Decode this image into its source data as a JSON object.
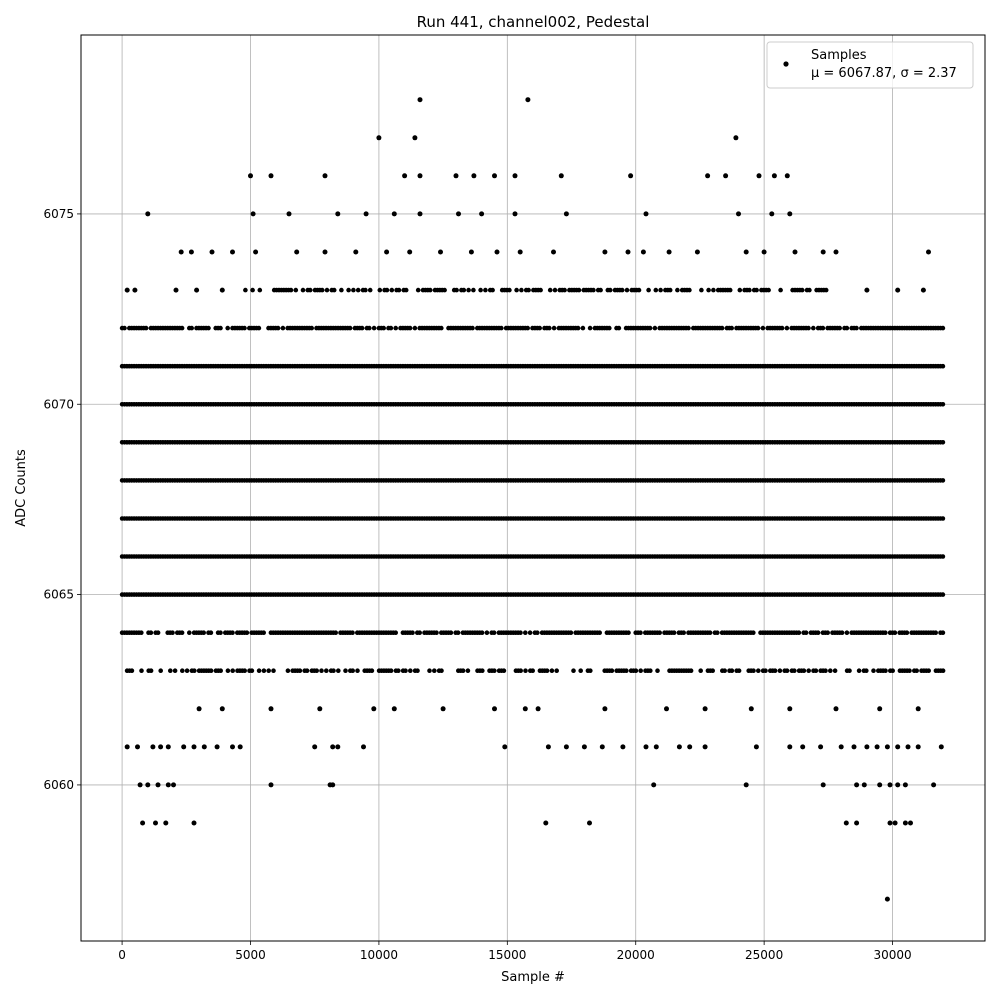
{
  "chart_data": {
    "type": "scatter",
    "title": "Run 441, channel002, Pedestal",
    "xlabel": "Sample #",
    "ylabel": "ADC Counts",
    "xlim": [
      -1600,
      33600
    ],
    "ylim": [
      6055.9,
      6079.7
    ],
    "xticks": [
      0,
      5000,
      10000,
      15000,
      20000,
      25000,
      30000
    ],
    "yticks": [
      6060,
      6065,
      6070,
      6075
    ],
    "grid": true,
    "legend_position": "top-right",
    "marker_color": "#000000",
    "series": [
      {
        "name": "Samples",
        "stats_label": "μ = 6067.87, σ = 2.37",
        "n_samples": 32000,
        "dense_levels": [
          {
            "y": 6064,
            "range": [
              0,
              32000
            ]
          },
          {
            "y": 6065,
            "range": [
              0,
              32000
            ]
          },
          {
            "y": 6066,
            "range": [
              0,
              32000
            ]
          },
          {
            "y": 6067,
            "range": [
              0,
              32000
            ]
          },
          {
            "y": 6068,
            "range": [
              0,
              32000
            ]
          },
          {
            "y": 6069,
            "range": [
              0,
              32000
            ]
          },
          {
            "y": 6070,
            "range": [
              0,
              32000
            ]
          },
          {
            "y": 6071,
            "range": [
              0,
              32000
            ]
          },
          {
            "y": 6072,
            "range": [
              0,
              32000
            ]
          },
          {
            "y": 6063,
            "range": [
              100,
              32000
            ]
          },
          {
            "y": 6073,
            "range": [
              4800,
              27800
            ]
          }
        ],
        "sparse_points": [
          {
            "x": 1000,
            "y": 6075
          },
          {
            "x": 5100,
            "y": 6075
          },
          {
            "x": 6500,
            "y": 6075
          },
          {
            "x": 8400,
            "y": 6075
          },
          {
            "x": 9500,
            "y": 6075
          },
          {
            "x": 10600,
            "y": 6075
          },
          {
            "x": 11600,
            "y": 6075
          },
          {
            "x": 13100,
            "y": 6075
          },
          {
            "x": 14000,
            "y": 6075
          },
          {
            "x": 15300,
            "y": 6075
          },
          {
            "x": 17300,
            "y": 6075
          },
          {
            "x": 20400,
            "y": 6075
          },
          {
            "x": 24000,
            "y": 6075
          },
          {
            "x": 25300,
            "y": 6075
          },
          {
            "x": 26000,
            "y": 6075
          },
          {
            "x": 5000,
            "y": 6076
          },
          {
            "x": 5800,
            "y": 6076
          },
          {
            "x": 7900,
            "y": 6076
          },
          {
            "x": 11000,
            "y": 6076
          },
          {
            "x": 11600,
            "y": 6076
          },
          {
            "x": 13000,
            "y": 6076
          },
          {
            "x": 13700,
            "y": 6076
          },
          {
            "x": 14500,
            "y": 6076
          },
          {
            "x": 15300,
            "y": 6076
          },
          {
            "x": 17100,
            "y": 6076
          },
          {
            "x": 19800,
            "y": 6076
          },
          {
            "x": 22800,
            "y": 6076
          },
          {
            "x": 23500,
            "y": 6076
          },
          {
            "x": 24800,
            "y": 6076
          },
          {
            "x": 25400,
            "y": 6076
          },
          {
            "x": 25900,
            "y": 6076
          },
          {
            "x": 10000,
            "y": 6077
          },
          {
            "x": 11400,
            "y": 6077
          },
          {
            "x": 23900,
            "y": 6077
          },
          {
            "x": 11600,
            "y": 6078
          },
          {
            "x": 15800,
            "y": 6078
          },
          {
            "x": 200,
            "y": 6073
          },
          {
            "x": 500,
            "y": 6073
          },
          {
            "x": 2100,
            "y": 6073
          },
          {
            "x": 2900,
            "y": 6073
          },
          {
            "x": 3900,
            "y": 6073
          },
          {
            "x": 29000,
            "y": 6073
          },
          {
            "x": 30200,
            "y": 6073
          },
          {
            "x": 31200,
            "y": 6073
          },
          {
            "x": 2300,
            "y": 6074
          },
          {
            "x": 2700,
            "y": 6074
          },
          {
            "x": 3500,
            "y": 6074
          },
          {
            "x": 4300,
            "y": 6074
          },
          {
            "x": 5200,
            "y": 6074
          },
          {
            "x": 6800,
            "y": 6074
          },
          {
            "x": 7900,
            "y": 6074
          },
          {
            "x": 9100,
            "y": 6074
          },
          {
            "x": 10300,
            "y": 6074
          },
          {
            "x": 11200,
            "y": 6074
          },
          {
            "x": 12400,
            "y": 6074
          },
          {
            "x": 13600,
            "y": 6074
          },
          {
            "x": 14600,
            "y": 6074
          },
          {
            "x": 15500,
            "y": 6074
          },
          {
            "x": 16800,
            "y": 6074
          },
          {
            "x": 18800,
            "y": 6074
          },
          {
            "x": 19700,
            "y": 6074
          },
          {
            "x": 20300,
            "y": 6074
          },
          {
            "x": 21300,
            "y": 6074
          },
          {
            "x": 22400,
            "y": 6074
          },
          {
            "x": 24300,
            "y": 6074
          },
          {
            "x": 25000,
            "y": 6074
          },
          {
            "x": 26200,
            "y": 6074
          },
          {
            "x": 27300,
            "y": 6074
          },
          {
            "x": 27800,
            "y": 6074
          },
          {
            "x": 31400,
            "y": 6074
          },
          {
            "x": 3000,
            "y": 6062
          },
          {
            "x": 3900,
            "y": 6062
          },
          {
            "x": 5800,
            "y": 6062
          },
          {
            "x": 7700,
            "y": 6062
          },
          {
            "x": 9800,
            "y": 6062
          },
          {
            "x": 10600,
            "y": 6062
          },
          {
            "x": 12500,
            "y": 6062
          },
          {
            "x": 14500,
            "y": 6062
          },
          {
            "x": 15700,
            "y": 6062
          },
          {
            "x": 16200,
            "y": 6062
          },
          {
            "x": 18800,
            "y": 6062
          },
          {
            "x": 21200,
            "y": 6062
          },
          {
            "x": 22700,
            "y": 6062
          },
          {
            "x": 24500,
            "y": 6062
          },
          {
            "x": 26000,
            "y": 6062
          },
          {
            "x": 27800,
            "y": 6062
          },
          {
            "x": 29500,
            "y": 6062
          },
          {
            "x": 31000,
            "y": 6062
          },
          {
            "x": 200,
            "y": 6061
          },
          {
            "x": 600,
            "y": 6061
          },
          {
            "x": 1200,
            "y": 6061
          },
          {
            "x": 1500,
            "y": 6061
          },
          {
            "x": 1800,
            "y": 6061
          },
          {
            "x": 2400,
            "y": 6061
          },
          {
            "x": 2800,
            "y": 6061
          },
          {
            "x": 3200,
            "y": 6061
          },
          {
            "x": 3700,
            "y": 6061
          },
          {
            "x": 4300,
            "y": 6061
          },
          {
            "x": 4600,
            "y": 6061
          },
          {
            "x": 7500,
            "y": 6061
          },
          {
            "x": 8200,
            "y": 6061
          },
          {
            "x": 8400,
            "y": 6061
          },
          {
            "x": 9400,
            "y": 6061
          },
          {
            "x": 14900,
            "y": 6061
          },
          {
            "x": 16600,
            "y": 6061
          },
          {
            "x": 17300,
            "y": 6061
          },
          {
            "x": 18000,
            "y": 6061
          },
          {
            "x": 18700,
            "y": 6061
          },
          {
            "x": 19500,
            "y": 6061
          },
          {
            "x": 20400,
            "y": 6061
          },
          {
            "x": 20800,
            "y": 6061
          },
          {
            "x": 21700,
            "y": 6061
          },
          {
            "x": 22100,
            "y": 6061
          },
          {
            "x": 22700,
            "y": 6061
          },
          {
            "x": 24700,
            "y": 6061
          },
          {
            "x": 26000,
            "y": 6061
          },
          {
            "x": 26500,
            "y": 6061
          },
          {
            "x": 27200,
            "y": 6061
          },
          {
            "x": 28000,
            "y": 6061
          },
          {
            "x": 28500,
            "y": 6061
          },
          {
            "x": 29000,
            "y": 6061
          },
          {
            "x": 29400,
            "y": 6061
          },
          {
            "x": 29800,
            "y": 6061
          },
          {
            "x": 30200,
            "y": 6061
          },
          {
            "x": 30600,
            "y": 6061
          },
          {
            "x": 31000,
            "y": 6061
          },
          {
            "x": 31900,
            "y": 6061
          },
          {
            "x": 700,
            "y": 6060
          },
          {
            "x": 1000,
            "y": 6060
          },
          {
            "x": 1400,
            "y": 6060
          },
          {
            "x": 1800,
            "y": 6060
          },
          {
            "x": 2000,
            "y": 6060
          },
          {
            "x": 5800,
            "y": 6060
          },
          {
            "x": 8100,
            "y": 6060
          },
          {
            "x": 8200,
            "y": 6060
          },
          {
            "x": 20700,
            "y": 6060
          },
          {
            "x": 24300,
            "y": 6060
          },
          {
            "x": 27300,
            "y": 6060
          },
          {
            "x": 28600,
            "y": 6060
          },
          {
            "x": 28900,
            "y": 6060
          },
          {
            "x": 29500,
            "y": 6060
          },
          {
            "x": 29900,
            "y": 6060
          },
          {
            "x": 30200,
            "y": 6060
          },
          {
            "x": 30500,
            "y": 6060
          },
          {
            "x": 31600,
            "y": 6060
          },
          {
            "x": 800,
            "y": 6059
          },
          {
            "x": 1300,
            "y": 6059
          },
          {
            "x": 1700,
            "y": 6059
          },
          {
            "x": 2800,
            "y": 6059
          },
          {
            "x": 16500,
            "y": 6059
          },
          {
            "x": 18200,
            "y": 6059
          },
          {
            "x": 28200,
            "y": 6059
          },
          {
            "x": 28600,
            "y": 6059
          },
          {
            "x": 29900,
            "y": 6059
          },
          {
            "x": 30100,
            "y": 6059
          },
          {
            "x": 30500,
            "y": 6059
          },
          {
            "x": 30700,
            "y": 6059
          },
          {
            "x": 29800,
            "y": 6057
          }
        ]
      }
    ]
  }
}
